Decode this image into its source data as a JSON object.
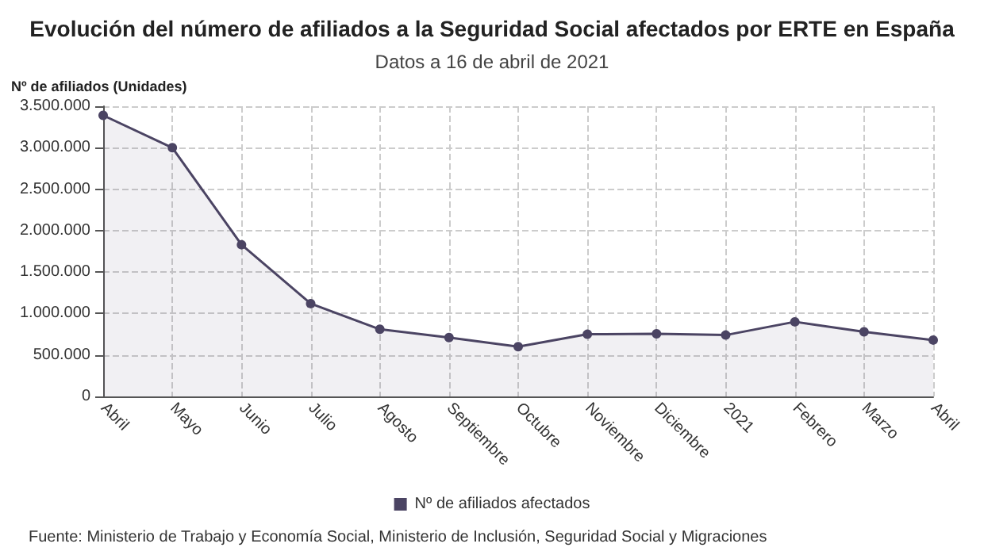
{
  "chart_data": {
    "type": "area",
    "title": "Evolución del número de afiliados a la Seguridad Social afectados por ERTE en España",
    "subtitle": "Datos a 16 de abril de 2021",
    "ylabel": "Nº de afiliados (Unidades)",
    "categories": [
      "Abril",
      "Mayo",
      "Junio",
      "Julio",
      "Agosto",
      "Septiembre",
      "Octubre",
      "Noviembre",
      "Diciembre",
      "2021",
      "Febrero",
      "Marzo",
      "Abril"
    ],
    "series": [
      {
        "name": "Nº de afiliados afectados",
        "color": "#4b4463",
        "values": [
          3390000,
          3000000,
          1830000,
          1120000,
          810000,
          710000,
          600000,
          750000,
          755000,
          740000,
          900000,
          780000,
          680000
        ]
      }
    ],
    "ylim": [
      0,
      3500000
    ],
    "yticks": [
      {
        "value": 0,
        "label": "0"
      },
      {
        "value": 500000,
        "label": "500.000"
      },
      {
        "value": 1000000,
        "label": "1.000.000"
      },
      {
        "value": 1500000,
        "label": "1.500.000"
      },
      {
        "value": 2000000,
        "label": "2.000.000"
      },
      {
        "value": 2500000,
        "label": "2.500.000"
      },
      {
        "value": 3000000,
        "label": "3.000.000"
      },
      {
        "value": 3500000,
        "label": "3.500.000"
      }
    ],
    "grid": true,
    "legend": "bottom",
    "marker": "circle",
    "line_style": "solid",
    "annotations": [
      "Fuente: Ministerio de Trabajo y Economía Social, Ministerio de Inclusión, Seguridad Social y Migraciones"
    ]
  }
}
